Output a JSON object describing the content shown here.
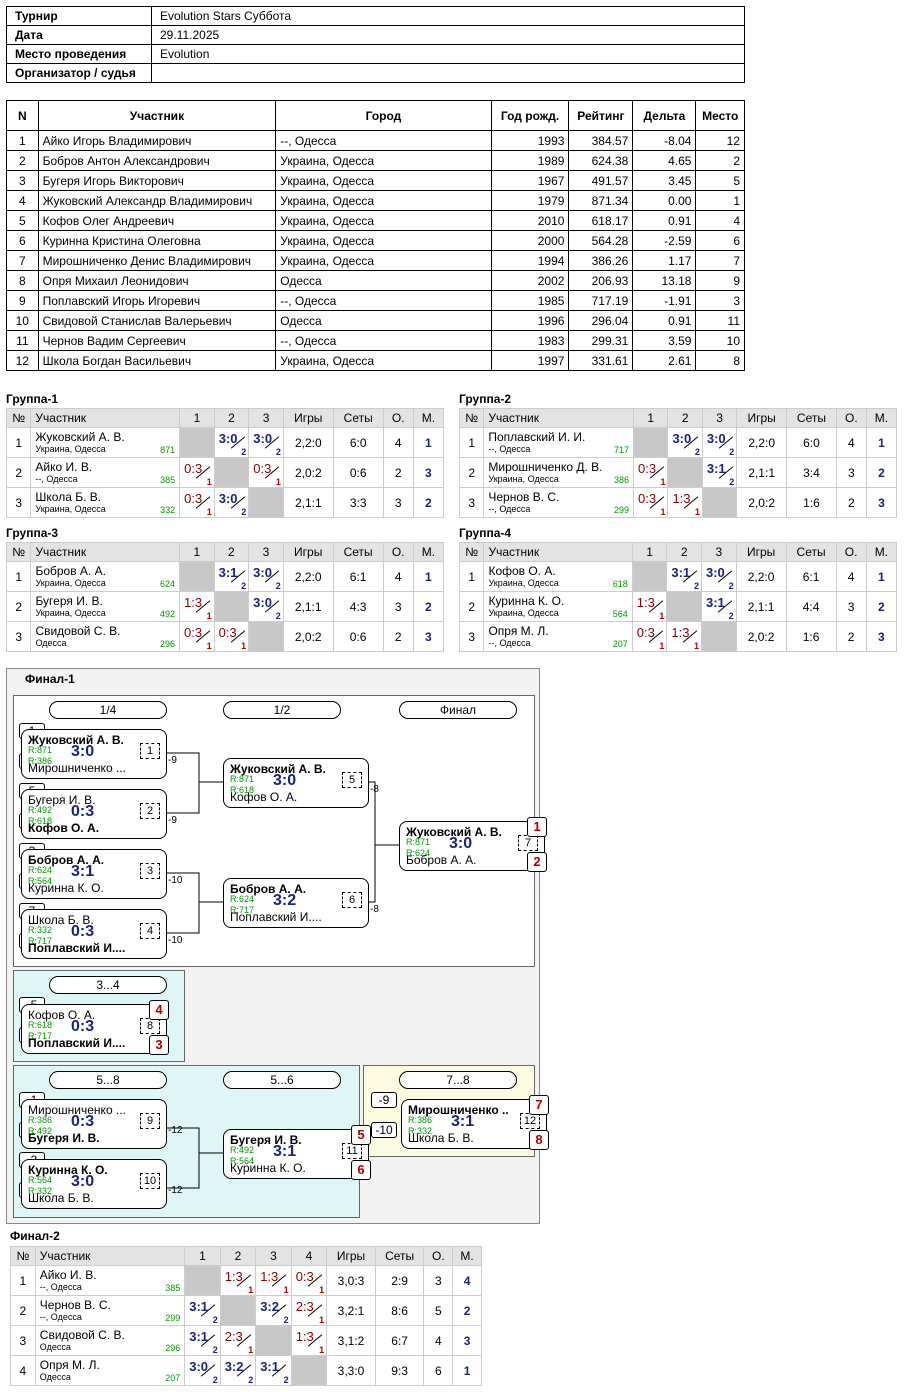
{
  "info": {
    "rows": [
      {
        "k": "Турнир",
        "v": "Evolution Stars Суббота"
      },
      {
        "k": "Дата",
        "v": "29.11.2025"
      },
      {
        "k": "Место проведения",
        "v": "Evolution"
      },
      {
        "k": "Организатор / судья",
        "v": ""
      }
    ]
  },
  "participants": {
    "headers": [
      "N",
      "Участник",
      "Город",
      "Год рожд.",
      "Рейтинг",
      "Дельта",
      "Место"
    ],
    "rows": [
      [
        "1",
        "Айко Игорь Владимирович",
        "--, Одесса",
        "1993",
        "384.57",
        "-8.04",
        "12"
      ],
      [
        "2",
        "Бобров Антон Александрович",
        "Украина, Одесса",
        "1989",
        "624.38",
        "4.65",
        "2"
      ],
      [
        "3",
        "Бугеря Игорь Викторович",
        "Украина, Одесса",
        "1967",
        "491.57",
        "3.45",
        "5"
      ],
      [
        "4",
        "Жуковский Александр Владимирович",
        "Украина, Одесса",
        "1979",
        "871.34",
        "0.00",
        "1"
      ],
      [
        "5",
        "Кофов Олег Андреевич",
        "Украина, Одесса",
        "2010",
        "618.17",
        "0.91",
        "4"
      ],
      [
        "6",
        "Куринна Кристина Олеговна",
        "Украина, Одесса",
        "2000",
        "564.28",
        "-2.59",
        "6"
      ],
      [
        "7",
        "Мирошниченко Денис Владимирович",
        "Украина, Одесса",
        "1994",
        "386.26",
        "1.17",
        "7"
      ],
      [
        "8",
        "Опря Михаил Леонидович",
        "Одесса",
        "2002",
        "206.93",
        "13.18",
        "9"
      ],
      [
        "9",
        "Поплавский Игорь Игоревич",
        "--, Одесса",
        "1985",
        "717.19",
        "-1.91",
        "3"
      ],
      [
        "10",
        "Свидовой Станислав Валерьевич",
        "Одесса",
        "1996",
        "296.04",
        "0.91",
        "11"
      ],
      [
        "11",
        "Чернов Вадим Сергеевич",
        "--, Одесса",
        "1983",
        "299.31",
        "3.59",
        "10"
      ],
      [
        "12",
        "Школа Богдан Васильевич",
        "Украина, Одесса",
        "1997",
        "331.61",
        "2.61",
        "8"
      ]
    ]
  },
  "group_headers": [
    "№",
    "Участник",
    "1",
    "2",
    "3",
    "Игры",
    "Сеты",
    "О.",
    "М."
  ],
  "groups": [
    {
      "title": "Группа-1",
      "rows": [
        {
          "n": "1",
          "name": "Жуковский А. В.",
          "city": "Украина, Одесса",
          "rating": "871",
          "cells": [
            null,
            {
              "s": "3:0",
              "p": "2",
              "w": true
            },
            {
              "s": "3:0",
              "p": "2",
              "w": true
            }
          ],
          "games": "2,2:0",
          "sets": "6:0",
          "o": "4",
          "m": "1"
        },
        {
          "n": "2",
          "name": "Айко И. В.",
          "city": "--, Одесса",
          "rating": "385",
          "cells": [
            {
              "s": "0:3",
              "p": "1",
              "w": false
            },
            null,
            {
              "s": "0:3",
              "p": "1",
              "w": false
            }
          ],
          "games": "2,0:2",
          "sets": "0:6",
          "o": "2",
          "m": "3"
        },
        {
          "n": "3",
          "name": "Школа Б. В.",
          "city": "Украина, Одесса",
          "rating": "332",
          "cells": [
            {
              "s": "0:3",
              "p": "1",
              "w": false
            },
            {
              "s": "3:0",
              "p": "2",
              "w": true
            },
            null
          ],
          "games": "2,1:1",
          "sets": "3:3",
          "o": "3",
          "m": "2"
        }
      ]
    },
    {
      "title": "Группа-2",
      "rows": [
        {
          "n": "1",
          "name": "Поплавский И. И.",
          "city": "--, Одесса",
          "rating": "717",
          "cells": [
            null,
            {
              "s": "3:0",
              "p": "2",
              "w": true
            },
            {
              "s": "3:0",
              "p": "2",
              "w": true
            }
          ],
          "games": "2,2:0",
          "sets": "6:0",
          "o": "4",
          "m": "1"
        },
        {
          "n": "2",
          "name": "Мирошниченко Д. В.",
          "city": "Украина, Одесса",
          "rating": "386",
          "cells": [
            {
              "s": "0:3",
              "p": "1",
              "w": false
            },
            null,
            {
              "s": "3:1",
              "p": "2",
              "w": true
            }
          ],
          "games": "2,1:1",
          "sets": "3:4",
          "o": "3",
          "m": "2"
        },
        {
          "n": "3",
          "name": "Чернов В. С.",
          "city": "--, Одесса",
          "rating": "299",
          "cells": [
            {
              "s": "0:3",
              "p": "1",
              "w": false
            },
            {
              "s": "1:3",
              "p": "1",
              "w": false
            },
            null
          ],
          "games": "2,0:2",
          "sets": "1:6",
          "o": "2",
          "m": "3"
        }
      ]
    },
    {
      "title": "Группа-3",
      "rows": [
        {
          "n": "1",
          "name": "Бобров А. А.",
          "city": "Украина, Одесса",
          "rating": "624",
          "cells": [
            null,
            {
              "s": "3:1",
              "p": "2",
              "w": true
            },
            {
              "s": "3:0",
              "p": "2",
              "w": true
            }
          ],
          "games": "2,2:0",
          "sets": "6:1",
          "o": "4",
          "m": "1"
        },
        {
          "n": "2",
          "name": "Бугеря И. В.",
          "city": "Украина, Одесса",
          "rating": "492",
          "cells": [
            {
              "s": "1:3",
              "p": "1",
              "w": false
            },
            null,
            {
              "s": "3:0",
              "p": "2",
              "w": true
            }
          ],
          "games": "2,1:1",
          "sets": "4:3",
          "o": "3",
          "m": "2"
        },
        {
          "n": "3",
          "name": "Свидовой С. В.",
          "city": "Одесса",
          "rating": "296",
          "cells": [
            {
              "s": "0:3",
              "p": "1",
              "w": false
            },
            {
              "s": "0:3",
              "p": "1",
              "w": false
            },
            null
          ],
          "games": "2,0:2",
          "sets": "0:6",
          "o": "2",
          "m": "3"
        }
      ]
    },
    {
      "title": "Группа-4",
      "rows": [
        {
          "n": "1",
          "name": "Кофов О. А.",
          "city": "Украина, Одесса",
          "rating": "618",
          "cells": [
            null,
            {
              "s": "3:1",
              "p": "2",
              "w": true
            },
            {
              "s": "3:0",
              "p": "2",
              "w": true
            }
          ],
          "games": "2,2:0",
          "sets": "6:1",
          "o": "4",
          "m": "1"
        },
        {
          "n": "2",
          "name": "Куринна К. О.",
          "city": "Украина, Одесса",
          "rating": "564",
          "cells": [
            {
              "s": "1:3",
              "p": "1",
              "w": false
            },
            null,
            {
              "s": "3:1",
              "p": "2",
              "w": true
            }
          ],
          "games": "2,1:1",
          "sets": "4:4",
          "o": "3",
          "m": "2"
        },
        {
          "n": "3",
          "name": "Опря М. Л.",
          "city": "--, Одесса",
          "rating": "207",
          "cells": [
            {
              "s": "0:3",
              "p": "1",
              "w": false
            },
            {
              "s": "1:3",
              "p": "1",
              "w": false
            },
            null
          ],
          "games": "2,0:2",
          "sets": "1:6",
          "o": "2",
          "m": "3"
        }
      ]
    }
  ],
  "final1": {
    "title": "Финал-1",
    "rounds": [
      "1/4",
      "1/2",
      "Финал"
    ],
    "r34": "3...4",
    "r58": "5...8",
    "r56": "5...6",
    "r78": "7...8",
    "seeds": [
      "1",
      "8",
      "5",
      "4",
      "3",
      "6",
      "7",
      "2"
    ],
    "loser_seeds": [
      "-5",
      "-6",
      "-1",
      "-2",
      "-3",
      "-4",
      "-9",
      "-10"
    ],
    "matches": [
      {
        "a": "Жуковский А. В.",
        "b": "Мирошниченко ...",
        "ra": "R:871",
        "rb": "R:386",
        "score": "3:0",
        "num": "1",
        "win": "a",
        "loser": "-9"
      },
      {
        "a": "Бугеря И. В.",
        "b": "Кофов О. А.",
        "ra": "R:492",
        "rb": "R:618",
        "score": "0:3",
        "num": "2",
        "win": "b",
        "loser": "-9"
      },
      {
        "a": "Бобров А. А.",
        "b": "Куринна К. О.",
        "ra": "R:624",
        "rb": "R:564",
        "score": "3:1",
        "num": "3",
        "win": "a",
        "loser": "-10"
      },
      {
        "a": "Школа Б. В.",
        "b": "Поплавский И....",
        "ra": "R:332",
        "rb": "R:717",
        "score": "0:3",
        "num": "4",
        "win": "b",
        "loser": "-10"
      },
      {
        "a": "Жуковский А. В.",
        "b": "Кофов О. А.",
        "ra": "R:871",
        "rb": "R:618",
        "score": "3:0",
        "num": "5",
        "win": "a",
        "loser": "-8"
      },
      {
        "a": "Бобров А. А.",
        "b": "Поплавский И....",
        "ra": "R:624",
        "rb": "R:717",
        "score": "3:2",
        "num": "6",
        "win": "a",
        "loser": "-8"
      },
      {
        "a": "Жуковский А. В.",
        "b": "Бобров А. А.",
        "ra": "R:871",
        "rb": "R:624",
        "score": "3:0",
        "num": "7",
        "win": "a",
        "pa": "1",
        "pb": "2"
      },
      {
        "a": "Кофов О. А.",
        "b": "Поплавский И....",
        "ra": "R:618",
        "rb": "R:717",
        "score": "0:3",
        "num": "8",
        "win": "b",
        "pa": "4",
        "pb": "3"
      },
      {
        "a": "Мирошниченко ...",
        "b": "Бугеря И. В.",
        "ra": "R:386",
        "rb": "R:492",
        "score": "0:3",
        "num": "9",
        "win": "b",
        "loser": "-12"
      },
      {
        "a": "Куринна К. О.",
        "b": "Школа Б. В.",
        "ra": "R:564",
        "rb": "R:332",
        "score": "3:0",
        "num": "10",
        "win": "a",
        "loser": "-12"
      },
      {
        "a": "Бугеря И. В.",
        "b": "Куринна К. О.",
        "ra": "R:492",
        "rb": "R:564",
        "score": "3:1",
        "num": "11",
        "win": "a",
        "pa": "5",
        "pb": "6"
      },
      {
        "a": "Мирошниченко ...",
        "b": "Школа Б. В.",
        "ra": "R:386",
        "rb": "R:332",
        "score": "3:1",
        "num": "12",
        "win": "a",
        "pa": "7",
        "pb": "8"
      }
    ]
  },
  "final2": {
    "title": "Финал-2",
    "headers": [
      "№",
      "Участник",
      "1",
      "2",
      "3",
      "4",
      "Игры",
      "Сеты",
      "О.",
      "М."
    ],
    "rows": [
      {
        "n": "1",
        "name": "Айко И. В.",
        "city": "--, Одесса",
        "rating": "385",
        "cells": [
          null,
          {
            "s": "1:3",
            "p": "1",
            "w": false
          },
          {
            "s": "1:3",
            "p": "1",
            "w": false
          },
          {
            "s": "0:3",
            "p": "1",
            "w": false
          }
        ],
        "games": "3,0:3",
        "sets": "2:9",
        "o": "3",
        "m": "4"
      },
      {
        "n": "2",
        "name": "Чернов В. С.",
        "city": "--, Одесса",
        "rating": "299",
        "cells": [
          {
            "s": "3:1",
            "p": "2",
            "w": true
          },
          null,
          {
            "s": "3:2",
            "p": "2",
            "w": true
          },
          {
            "s": "2:3",
            "p": "1",
            "w": false
          }
        ],
        "games": "3,2:1",
        "sets": "8:6",
        "o": "5",
        "m": "2"
      },
      {
        "n": "3",
        "name": "Свидовой С. В.",
        "city": "Одесса",
        "rating": "296",
        "cells": [
          {
            "s": "3:1",
            "p": "2",
            "w": true
          },
          {
            "s": "2:3",
            "p": "1",
            "w": false
          },
          null,
          {
            "s": "1:3",
            "p": "1",
            "w": false
          }
        ],
        "games": "3,1:2",
        "sets": "6:7",
        "o": "4",
        "m": "3"
      },
      {
        "n": "4",
        "name": "Опря М. Л.",
        "city": "Одесса",
        "rating": "207",
        "cells": [
          {
            "s": "3:0",
            "p": "2",
            "w": true
          },
          {
            "s": "3:2",
            "p": "2",
            "w": true
          },
          {
            "s": "3:1",
            "p": "2",
            "w": true
          },
          null
        ],
        "games": "3,3:0",
        "sets": "9:3",
        "o": "6",
        "m": "1"
      }
    ]
  }
}
